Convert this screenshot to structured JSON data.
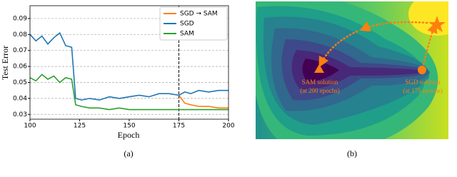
{
  "chart_data": {
    "type": "line",
    "xlabel": "Epoch",
    "ylabel": "Test Error",
    "x": [
      100,
      103,
      106,
      109,
      112,
      115,
      118,
      121,
      123,
      126,
      130,
      135,
      140,
      145,
      150,
      155,
      160,
      165,
      170,
      175,
      178,
      181,
      185,
      190,
      195,
      200
    ],
    "series": [
      {
        "name": "SGD → SAM",
        "color": "#ff7f0e",
        "values": [
          null,
          null,
          null,
          null,
          null,
          null,
          null,
          null,
          null,
          null,
          null,
          null,
          null,
          null,
          null,
          null,
          null,
          null,
          null,
          0.042,
          0.037,
          0.036,
          0.035,
          0.035,
          0.034,
          0.034
        ]
      },
      {
        "name": "SGD",
        "color": "#1f77b4",
        "values": [
          0.08,
          0.076,
          0.079,
          0.074,
          0.078,
          0.081,
          0.073,
          0.072,
          0.04,
          0.039,
          0.04,
          0.039,
          0.041,
          0.04,
          0.041,
          0.042,
          0.041,
          0.043,
          0.043,
          0.042,
          0.044,
          0.043,
          0.045,
          0.044,
          0.045,
          0.045
        ]
      },
      {
        "name": "SAM",
        "color": "#2ca02c",
        "values": [
          0.053,
          0.051,
          0.055,
          0.052,
          0.054,
          0.05,
          0.053,
          0.052,
          0.036,
          0.035,
          0.034,
          0.034,
          0.033,
          0.034,
          0.033,
          0.033,
          0.033,
          0.033,
          0.033,
          0.033,
          0.033,
          0.033,
          0.033,
          0.033,
          0.033,
          0.033
        ]
      }
    ],
    "xlim": [
      100,
      200
    ],
    "xticks": [
      100,
      125,
      150,
      175,
      200
    ],
    "ylim": [
      0.027,
      0.098
    ],
    "yticks": [
      0.03,
      0.04,
      0.05,
      0.06,
      0.07,
      0.08,
      0.09
    ],
    "grid": true,
    "vlines": [
      175
    ],
    "legend": "upper right"
  },
  "panel_b": {
    "sam_label": "SAM solution",
    "sam_sub": "(at 200 epochs)",
    "sgd_label": "SGD solution",
    "sgd_sub": "(at 175 epochs)"
  },
  "figure": {
    "subcaptions": [
      "(a)",
      "(b)"
    ]
  }
}
